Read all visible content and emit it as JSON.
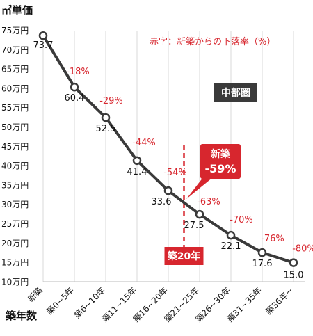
{
  "chart_data": {
    "type": "line",
    "unit_label": "㎡単価",
    "y_ticks": [
      "75万円",
      "70万円",
      "65万円",
      "60万円",
      "55万円",
      "50万円",
      "45万円",
      "40万円",
      "35万円",
      "30万円",
      "25万円",
      "20万円",
      "15万円",
      "10万円"
    ],
    "ylim": [
      10,
      75
    ],
    "categories": [
      "新築",
      "築0~5年",
      "築6~10年",
      "築11~15年",
      "築16~20年",
      "築21~25年",
      "築26~30年",
      "築31~35年",
      "築36年~"
    ],
    "series": [
      {
        "values": [
          73.7,
          60.4,
          52.5,
          41.4,
          33.6,
          27.5,
          22.1,
          17.6,
          15.0
        ],
        "value_labels": [
          "73.7",
          "60.4",
          "52.5",
          "41.4",
          "33.6",
          "27.5",
          "22.1",
          "17.6",
          "15.0"
        ],
        "pct_labels": [
          "",
          "-18%",
          "-29%",
          "-44%",
          "-54%",
          "-63%",
          "-70%",
          "-76%",
          "-80%"
        ]
      }
    ],
    "xlabel": "築年数",
    "legend_note": "赤字：新築からの下落率（%）",
    "region_badge": "中部圏",
    "callout": {
      "title": "新築",
      "value": "-59%"
    },
    "marker_20": {
      "label": "築20年",
      "x_position": 4.5
    },
    "grid": "vertical",
    "colors": {
      "line": "#3a3a3a",
      "accent": "#d7262e",
      "badge": "#3a3a3a"
    }
  }
}
